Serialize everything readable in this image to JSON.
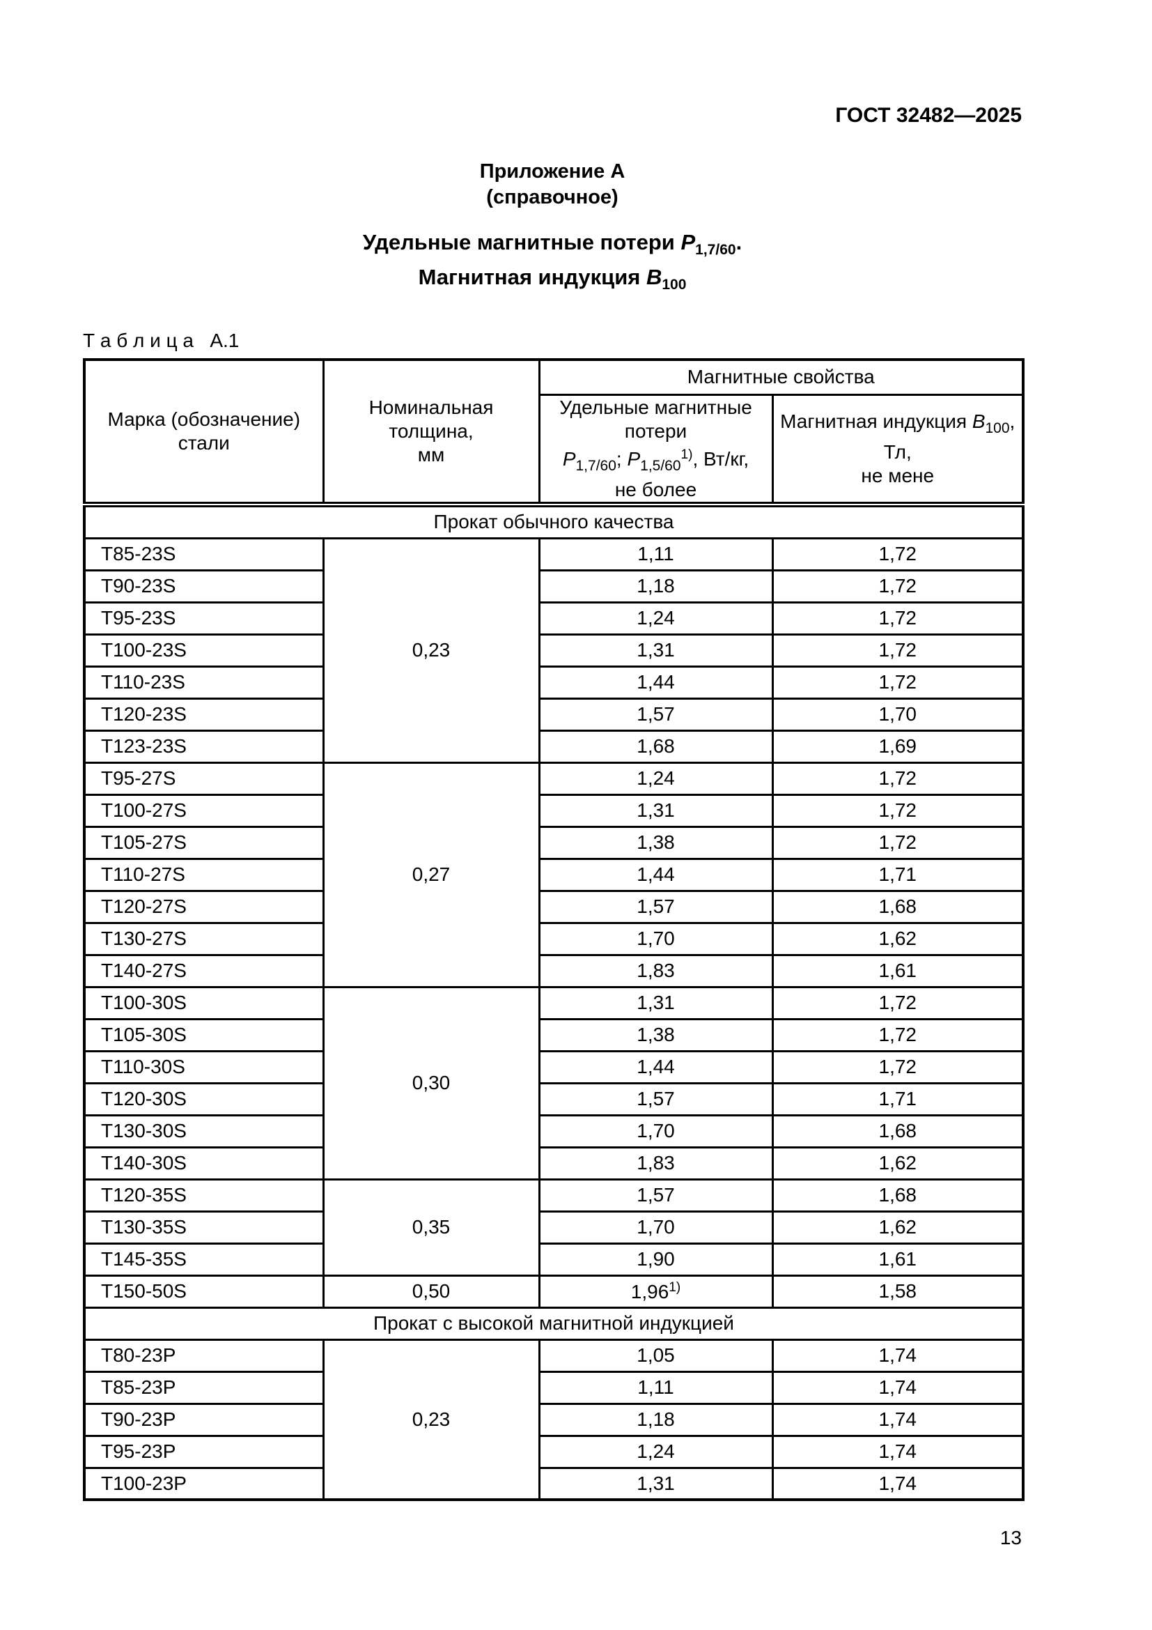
{
  "page": {
    "doc_code": "ГОСТ 32482—2025",
    "page_number": "13"
  },
  "appendix": {
    "line1": "Приложение А",
    "line2": "(справочное)"
  },
  "title": {
    "line1_text": "Удельные магнитные потери ",
    "line1_var": "P",
    "line1_sub": "1,7/60",
    "line1_end": ".",
    "line2_text": "Магнитная индукция ",
    "line2_var": "B",
    "line2_sub": "100"
  },
  "table": {
    "caption": "Т а б л и ц а   А.1",
    "col1_header": "Марка (обозначение) стали",
    "col2_header_line1": "Номинальная толщина,",
    "col2_header_line2": "мм",
    "group_header": "Магнитные свойства",
    "col3_header": {
      "line1": "Удельные магнитные потери",
      "var1": "P",
      "sub1": "1,7/60",
      "sep": "; ",
      "var2": "P",
      "sub2": "1,5/60",
      "sup2": "1)",
      "tail": ", Вт/кг,",
      "line3": "не более"
    },
    "col4_header": {
      "text1": "Магнитная индукция ",
      "var": "B",
      "sub": "100",
      "tail": ", Тл,",
      "line2": "не мене"
    },
    "sections": [
      {
        "title": "Прокат обычного качества",
        "groups": [
          {
            "thickness": "0,23",
            "rows": [
              {
                "grade": "Т85-23S",
                "loss": "1,11",
                "b100": "1,72"
              },
              {
                "grade": "Т90-23S",
                "loss": "1,18",
                "b100": "1,72"
              },
              {
                "grade": "Т95-23S",
                "loss": "1,24",
                "b100": "1,72"
              },
              {
                "grade": "Т100-23S",
                "loss": "1,31",
                "b100": "1,72"
              },
              {
                "grade": "Т110-23S",
                "loss": "1,44",
                "b100": "1,72"
              },
              {
                "grade": "Т120-23S",
                "loss": "1,57",
                "b100": "1,70"
              },
              {
                "grade": "Т123-23S",
                "loss": "1,68",
                "b100": "1,69"
              }
            ]
          },
          {
            "thickness": "0,27",
            "rows": [
              {
                "grade": "Т95-27S",
                "loss": "1,24",
                "b100": "1,72"
              },
              {
                "grade": "Т100-27S",
                "loss": "1,31",
                "b100": "1,72"
              },
              {
                "grade": "Т105-27S",
                "loss": "1,38",
                "b100": "1,72"
              },
              {
                "grade": "Т110-27S",
                "loss": "1,44",
                "b100": "1,71"
              },
              {
                "grade": "Т120-27S",
                "loss": "1,57",
                "b100": "1,68"
              },
              {
                "grade": "Т130-27S",
                "loss": "1,70",
                "b100": "1,62"
              },
              {
                "grade": "Т140-27S",
                "loss": "1,83",
                "b100": "1,61"
              }
            ]
          },
          {
            "thickness": "0,30",
            "rows": [
              {
                "grade": "Т100-30S",
                "loss": "1,31",
                "b100": "1,72"
              },
              {
                "grade": "Т105-30S",
                "loss": "1,38",
                "b100": "1,72"
              },
              {
                "grade": "Т110-30S",
                "loss": "1,44",
                "b100": "1,72"
              },
              {
                "grade": "Т120-30S",
                "loss": "1,57",
                "b100": "1,71"
              },
              {
                "grade": "Т130-30S",
                "loss": "1,70",
                "b100": "1,68"
              },
              {
                "grade": "Т140-30S",
                "loss": "1,83",
                "b100": "1,62"
              }
            ]
          },
          {
            "thickness": "0,35",
            "rows": [
              {
                "grade": "Т120-35S",
                "loss": "1,57",
                "b100": "1,68"
              },
              {
                "grade": "Т130-35S",
                "loss": "1,70",
                "b100": "1,62"
              },
              {
                "grade": "Т145-35S",
                "loss": "1,90",
                "b100": "1,61"
              }
            ]
          },
          {
            "thickness": "0,50",
            "rows": [
              {
                "grade": "Т150-50S",
                "loss": "1,96",
                "loss_sup": "1)",
                "b100": "1,58"
              }
            ]
          }
        ]
      },
      {
        "title": "Прокат с высокой магнитной индукцией",
        "groups": [
          {
            "thickness": "0,23",
            "rows": [
              {
                "grade": "Т80-23Р",
                "loss": "1,05",
                "b100": "1,74"
              },
              {
                "grade": "Т85-23Р",
                "loss": "1,11",
                "b100": "1,74"
              },
              {
                "grade": "Т90-23Р",
                "loss": "1,18",
                "b100": "1,74"
              },
              {
                "grade": "Т95-23Р",
                "loss": "1,24",
                "b100": "1,74"
              },
              {
                "grade": "Т100-23Р",
                "loss": "1,31",
                "b100": "1,74"
              }
            ]
          }
        ]
      }
    ]
  }
}
